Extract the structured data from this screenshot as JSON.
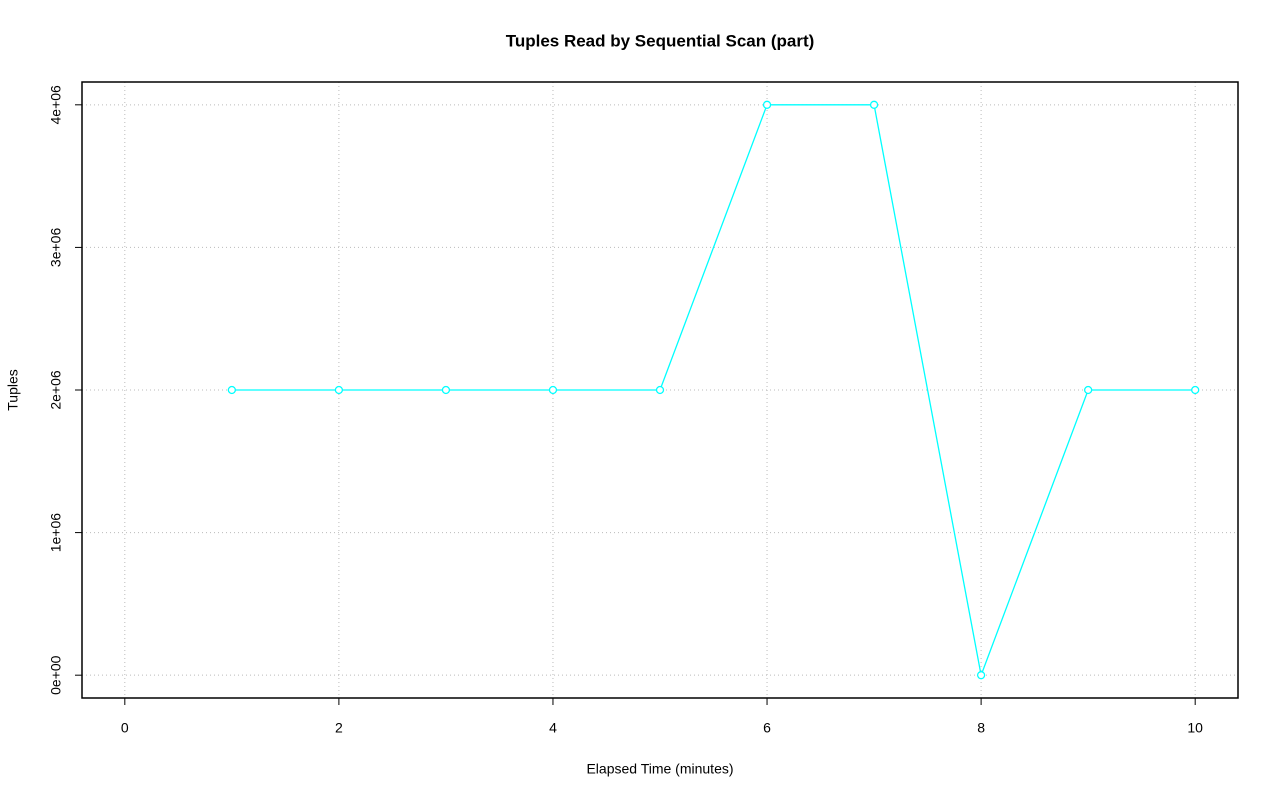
{
  "chart_data": {
    "type": "line",
    "title": "Tuples Read by Sequential Scan (part)",
    "x_label": "Elapsed Time (minutes)",
    "y_label": "Tuples",
    "x": [
      1,
      2,
      3,
      4,
      5,
      6,
      7,
      8,
      9,
      10
    ],
    "series": [
      {
        "name": "Tuples",
        "color": "#00ffff",
        "values": [
          2000000,
          2000000,
          2000000,
          2000000,
          2000000,
          4000000,
          4000000,
          0,
          2000000,
          2000000
        ]
      }
    ],
    "xlim": [
      -0.4,
      10.4
    ],
    "xticks": [
      0,
      2,
      4,
      6,
      8,
      10
    ],
    "ylim": [
      -160000,
      4160000
    ],
    "yticks": [
      {
        "value": 0,
        "label": "0e+00"
      },
      {
        "value": 1000000,
        "label": "1e+06"
      },
      {
        "value": 2000000,
        "label": "2e+06"
      },
      {
        "value": 3000000,
        "label": "3e+06"
      },
      {
        "value": 4000000,
        "label": "4e+06"
      }
    ],
    "grid": true
  }
}
